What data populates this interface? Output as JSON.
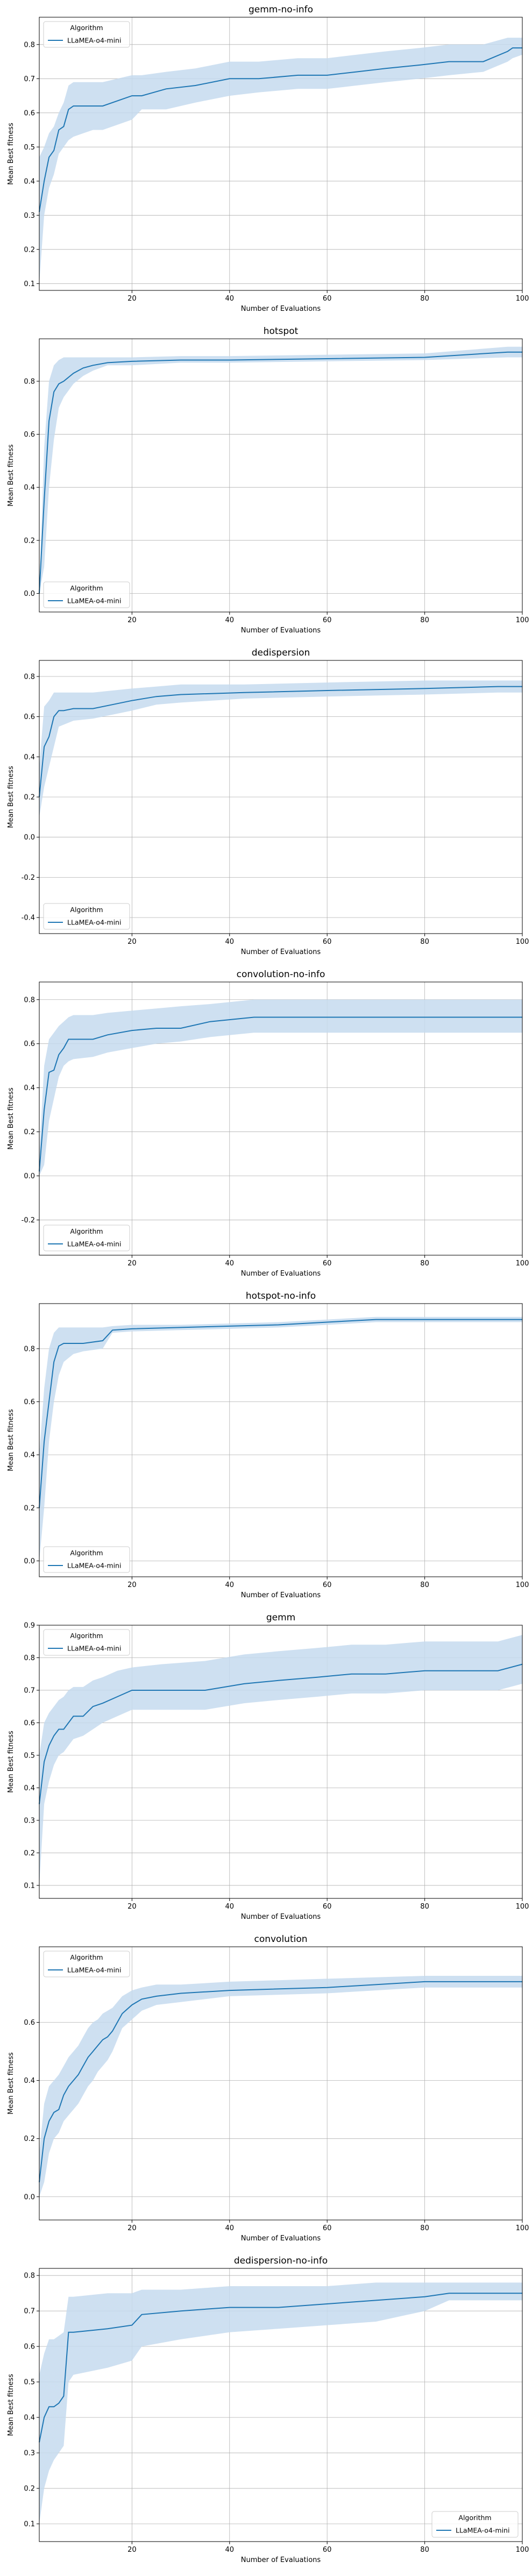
{
  "figure": {
    "legend_title": "Algorithm",
    "legend_label": "LLaMEA-o4-mini",
    "xlabel": "Number of Evaluations",
    "ylabel": "Mean Best fitness",
    "line_color": "#1f77b4",
    "band_color": "#c6dbef"
  },
  "chart_data": [
    {
      "type": "line",
      "title": "gemm-no-info",
      "xlabel": "Number of Evaluations",
      "ylabel": "Mean Best fitness",
      "xlim": [
        1,
        100
      ],
      "ylim": [
        0.08,
        0.88
      ],
      "xticks": [
        20,
        40,
        60,
        80,
        100
      ],
      "yticks": [
        0.1,
        0.2,
        0.3,
        0.4,
        0.5,
        0.6,
        0.7,
        0.8
      ],
      "grid": true,
      "legend_position": "top-left",
      "series": [
        {
          "name": "LLaMEA-o4-mini",
          "x": [
            1,
            2,
            3,
            4,
            5,
            6,
            7,
            8,
            10,
            12,
            14,
            20,
            22,
            27,
            33,
            40,
            46,
            54,
            60,
            66,
            72,
            79,
            85,
            92,
            97,
            98,
            100
          ],
          "y": [
            0.31,
            0.4,
            0.47,
            0.49,
            0.55,
            0.56,
            0.61,
            0.62,
            0.62,
            0.62,
            0.62,
            0.65,
            0.65,
            0.67,
            0.68,
            0.7,
            0.7,
            0.71,
            0.71,
            0.72,
            0.73,
            0.74,
            0.75,
            0.75,
            0.78,
            0.79,
            0.79
          ],
          "lower": [
            0.1,
            0.3,
            0.38,
            0.42,
            0.48,
            0.5,
            0.52,
            0.53,
            0.54,
            0.55,
            0.55,
            0.58,
            0.61,
            0.61,
            0.63,
            0.65,
            0.66,
            0.67,
            0.67,
            0.68,
            0.69,
            0.7,
            0.71,
            0.72,
            0.75,
            0.76,
            0.77
          ],
          "upper": [
            0.47,
            0.5,
            0.54,
            0.56,
            0.6,
            0.63,
            0.68,
            0.69,
            0.69,
            0.69,
            0.69,
            0.71,
            0.71,
            0.72,
            0.73,
            0.75,
            0.75,
            0.76,
            0.76,
            0.77,
            0.78,
            0.79,
            0.8,
            0.8,
            0.82,
            0.82,
            0.82
          ]
        }
      ]
    },
    {
      "type": "line",
      "title": "hotspot",
      "xlabel": "Number of Evaluations",
      "ylabel": "Mean Best fitness",
      "xlim": [
        1,
        100
      ],
      "ylim": [
        -0.07,
        0.96
      ],
      "xticks": [
        20,
        40,
        60,
        80,
        100
      ],
      "yticks": [
        0.0,
        0.2,
        0.4,
        0.6,
        0.8
      ],
      "grid": true,
      "legend_position": "bottom-left",
      "series": [
        {
          "name": "LLaMEA-o4-mini",
          "x": [
            1,
            2,
            3,
            4,
            5,
            6,
            8,
            10,
            12,
            15,
            20,
            30,
            40,
            60,
            80,
            97,
            100
          ],
          "y": [
            0.0,
            0.35,
            0.65,
            0.76,
            0.79,
            0.8,
            0.83,
            0.85,
            0.86,
            0.87,
            0.875,
            0.88,
            0.88,
            0.885,
            0.89,
            0.91,
            0.91
          ],
          "lower": [
            0.0,
            0.1,
            0.4,
            0.58,
            0.7,
            0.74,
            0.79,
            0.82,
            0.84,
            0.86,
            0.86,
            0.87,
            0.87,
            0.875,
            0.88,
            0.89,
            0.89
          ],
          "upper": [
            0.0,
            0.55,
            0.8,
            0.86,
            0.88,
            0.89,
            0.89,
            0.89,
            0.89,
            0.89,
            0.89,
            0.895,
            0.895,
            0.9,
            0.905,
            0.93,
            0.93
          ]
        }
      ]
    },
    {
      "type": "line",
      "title": "dedispersion",
      "xlabel": "Number of Evaluations",
      "ylabel": "Mean Best fitness",
      "xlim": [
        1,
        100
      ],
      "ylim": [
        -0.48,
        0.88
      ],
      "xticks": [
        20,
        40,
        60,
        80,
        100
      ],
      "yticks": [
        -0.4,
        -0.2,
        0.0,
        0.2,
        0.4,
        0.6,
        0.8
      ],
      "grid": true,
      "legend_position": "bottom-left",
      "series": [
        {
          "name": "LLaMEA-o4-mini",
          "x": [
            1,
            2,
            3,
            4,
            5,
            6,
            8,
            12,
            16,
            20,
            25,
            30,
            43,
            60,
            80,
            95,
            100
          ],
          "y": [
            0.2,
            0.45,
            0.5,
            0.6,
            0.63,
            0.63,
            0.64,
            0.64,
            0.66,
            0.68,
            0.7,
            0.71,
            0.72,
            0.73,
            0.74,
            0.75,
            0.75
          ],
          "lower": [
            0.1,
            0.25,
            0.35,
            0.45,
            0.55,
            0.56,
            0.58,
            0.59,
            0.61,
            0.63,
            0.66,
            0.67,
            0.69,
            0.7,
            0.71,
            0.72,
            0.72
          ],
          "upper": [
            0.35,
            0.65,
            0.68,
            0.72,
            0.72,
            0.72,
            0.72,
            0.72,
            0.73,
            0.74,
            0.75,
            0.76,
            0.76,
            0.77,
            0.78,
            0.78,
            0.78
          ]
        }
      ]
    },
    {
      "type": "line",
      "title": "convolution-no-info",
      "xlabel": "Number of Evaluations",
      "ylabel": "Mean Best fitness",
      "xlim": [
        1,
        100
      ],
      "ylim": [
        -0.36,
        0.88
      ],
      "xticks": [
        20,
        40,
        60,
        80,
        100
      ],
      "yticks": [
        -0.2,
        0.0,
        0.2,
        0.4,
        0.6,
        0.8
      ],
      "grid": true,
      "legend_position": "bottom-left",
      "series": [
        {
          "name": "LLaMEA-o4-mini",
          "x": [
            1,
            2,
            3,
            4,
            5,
            6,
            7,
            8,
            12,
            15,
            20,
            25,
            30,
            36,
            45,
            60,
            80,
            100
          ],
          "y": [
            0.02,
            0.3,
            0.47,
            0.48,
            0.55,
            0.58,
            0.62,
            0.62,
            0.62,
            0.64,
            0.66,
            0.67,
            0.67,
            0.7,
            0.72,
            0.72,
            0.72,
            0.72
          ],
          "lower": [
            0.0,
            0.05,
            0.25,
            0.35,
            0.45,
            0.5,
            0.52,
            0.53,
            0.54,
            0.56,
            0.58,
            0.6,
            0.61,
            0.63,
            0.65,
            0.65,
            0.65,
            0.65
          ],
          "upper": [
            0.1,
            0.5,
            0.62,
            0.65,
            0.68,
            0.7,
            0.72,
            0.73,
            0.73,
            0.74,
            0.75,
            0.76,
            0.77,
            0.78,
            0.8,
            0.8,
            0.8,
            0.8
          ]
        }
      ]
    },
    {
      "type": "line",
      "title": "hotspot-no-info",
      "xlabel": "Number of Evaluations",
      "ylabel": "Mean Best fitness",
      "xlim": [
        1,
        100
      ],
      "ylim": [
        -0.06,
        0.97
      ],
      "xticks": [
        20,
        40,
        60,
        80,
        100
      ],
      "yticks": [
        0.0,
        0.2,
        0.4,
        0.6,
        0.8
      ],
      "grid": true,
      "legend_position": "bottom-left",
      "series": [
        {
          "name": "LLaMEA-o4-mini",
          "x": [
            1,
            2,
            3,
            4,
            5,
            6,
            8,
            10,
            14,
            16,
            20,
            30,
            40,
            50,
            60,
            70,
            80,
            100
          ],
          "y": [
            0.2,
            0.45,
            0.6,
            0.75,
            0.81,
            0.82,
            0.82,
            0.82,
            0.83,
            0.87,
            0.875,
            0.88,
            0.885,
            0.89,
            0.9,
            0.91,
            0.91,
            0.91
          ],
          "lower": [
            0.0,
            0.2,
            0.45,
            0.6,
            0.7,
            0.75,
            0.78,
            0.79,
            0.8,
            0.86,
            0.865,
            0.87,
            0.875,
            0.88,
            0.89,
            0.9,
            0.9,
            0.9
          ],
          "upper": [
            0.4,
            0.65,
            0.8,
            0.86,
            0.88,
            0.88,
            0.88,
            0.88,
            0.88,
            0.885,
            0.89,
            0.89,
            0.895,
            0.9,
            0.91,
            0.92,
            0.92,
            0.92
          ]
        }
      ]
    },
    {
      "type": "line",
      "title": "gemm",
      "xlabel": "Number of Evaluations",
      "ylabel": "Mean Best fitness",
      "xlim": [
        1,
        100
      ],
      "ylim": [
        0.06,
        0.9
      ],
      "xticks": [
        20,
        40,
        60,
        80,
        100
      ],
      "yticks": [
        0.1,
        0.2,
        0.3,
        0.4,
        0.5,
        0.6,
        0.7,
        0.8,
        0.9
      ],
      "grid": true,
      "legend_position": "top-left",
      "series": [
        {
          "name": "LLaMEA-o4-mini",
          "x": [
            1,
            2,
            3,
            4,
            5,
            6,
            7,
            8,
            10,
            12,
            14,
            17,
            20,
            26,
            35,
            43,
            50,
            58,
            65,
            72,
            80,
            95,
            100
          ],
          "y": [
            0.35,
            0.48,
            0.53,
            0.56,
            0.58,
            0.58,
            0.6,
            0.62,
            0.62,
            0.65,
            0.66,
            0.68,
            0.7,
            0.7,
            0.7,
            0.72,
            0.73,
            0.74,
            0.75,
            0.75,
            0.76,
            0.76,
            0.78
          ],
          "lower": [
            0.1,
            0.35,
            0.42,
            0.47,
            0.5,
            0.51,
            0.53,
            0.55,
            0.56,
            0.58,
            0.6,
            0.62,
            0.64,
            0.64,
            0.64,
            0.66,
            0.67,
            0.68,
            0.69,
            0.69,
            0.7,
            0.7,
            0.72
          ],
          "upper": [
            0.5,
            0.6,
            0.63,
            0.65,
            0.67,
            0.68,
            0.7,
            0.71,
            0.71,
            0.73,
            0.74,
            0.76,
            0.77,
            0.78,
            0.79,
            0.81,
            0.82,
            0.83,
            0.84,
            0.84,
            0.85,
            0.85,
            0.87
          ]
        }
      ]
    },
    {
      "type": "line",
      "title": "convolution",
      "xlabel": "Number of Evaluations",
      "ylabel": "Mean Best fitness",
      "xlim": [
        1,
        100
      ],
      "ylim": [
        -0.08,
        0.86
      ],
      "xticks": [
        20,
        40,
        60,
        80,
        100
      ],
      "yticks": [
        0.0,
        0.2,
        0.4,
        0.6
      ],
      "grid": true,
      "legend_position": "top-left",
      "series": [
        {
          "name": "LLaMEA-o4-mini",
          "x": [
            1,
            2,
            3,
            4,
            5,
            6,
            7,
            8,
            9,
            10,
            11,
            12,
            13,
            14,
            15,
            16,
            17,
            18,
            20,
            22,
            25,
            30,
            40,
            60,
            80,
            100
          ],
          "y": [
            0.05,
            0.2,
            0.26,
            0.29,
            0.3,
            0.35,
            0.38,
            0.4,
            0.42,
            0.45,
            0.48,
            0.5,
            0.52,
            0.54,
            0.55,
            0.57,
            0.6,
            0.63,
            0.66,
            0.68,
            0.69,
            0.7,
            0.71,
            0.72,
            0.74,
            0.74
          ],
          "lower": [
            0.0,
            0.05,
            0.15,
            0.2,
            0.22,
            0.26,
            0.28,
            0.3,
            0.32,
            0.35,
            0.38,
            0.4,
            0.43,
            0.45,
            0.47,
            0.5,
            0.54,
            0.58,
            0.61,
            0.64,
            0.66,
            0.67,
            0.69,
            0.7,
            0.72,
            0.72
          ],
          "upper": [
            0.15,
            0.32,
            0.38,
            0.4,
            0.42,
            0.45,
            0.48,
            0.5,
            0.52,
            0.55,
            0.58,
            0.6,
            0.61,
            0.63,
            0.64,
            0.65,
            0.67,
            0.69,
            0.71,
            0.72,
            0.73,
            0.73,
            0.74,
            0.75,
            0.76,
            0.76
          ]
        }
      ]
    },
    {
      "type": "line",
      "title": "dedispersion-no-info",
      "xlabel": "Number of Evaluations",
      "ylabel": "Mean Best fitness",
      "xlim": [
        1,
        100
      ],
      "ylim": [
        0.05,
        0.82
      ],
      "xticks": [
        20,
        40,
        60,
        80,
        100
      ],
      "yticks": [
        0.1,
        0.2,
        0.3,
        0.4,
        0.5,
        0.6,
        0.7,
        0.8
      ],
      "grid": true,
      "legend_position": "bottom-right",
      "series": [
        {
          "name": "LLaMEA-o4-mini",
          "x": [
            1,
            2,
            3,
            4,
            5,
            6,
            7,
            8,
            15,
            20,
            22,
            30,
            40,
            50,
            60,
            70,
            80,
            85,
            100
          ],
          "y": [
            0.33,
            0.4,
            0.43,
            0.43,
            0.44,
            0.46,
            0.64,
            0.64,
            0.65,
            0.66,
            0.69,
            0.7,
            0.71,
            0.71,
            0.72,
            0.73,
            0.74,
            0.75,
            0.75
          ],
          "lower": [
            0.1,
            0.2,
            0.25,
            0.28,
            0.3,
            0.32,
            0.5,
            0.52,
            0.54,
            0.56,
            0.6,
            0.62,
            0.64,
            0.65,
            0.66,
            0.67,
            0.7,
            0.73,
            0.73
          ],
          "upper": [
            0.52,
            0.58,
            0.62,
            0.62,
            0.63,
            0.64,
            0.74,
            0.74,
            0.75,
            0.75,
            0.76,
            0.76,
            0.77,
            0.77,
            0.77,
            0.78,
            0.78,
            0.78,
            0.78
          ]
        }
      ]
    }
  ]
}
